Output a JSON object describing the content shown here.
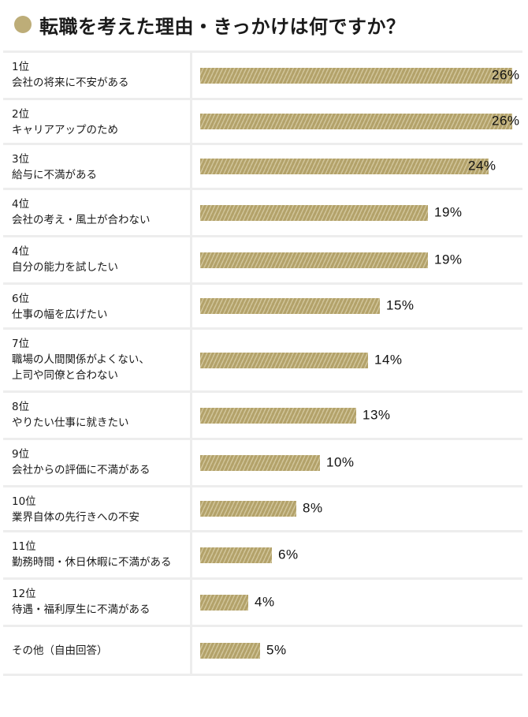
{
  "title": "転職を考えた理由・きっかけは何ですか？",
  "colors": {
    "accent": "#bdad78",
    "bar": "#b3a26a",
    "bar_stripe": "#d0c499",
    "divider": "#ededed"
  },
  "chart_data": {
    "type": "bar",
    "orientation": "horizontal",
    "xlim": [
      0,
      26
    ],
    "categories": [
      {
        "rank": "1位",
        "reason": "会社の将来に不安がある",
        "value": 26,
        "label": "26%"
      },
      {
        "rank": "2位",
        "reason": "キャリアアップのため",
        "value": 26,
        "label": "26%"
      },
      {
        "rank": "3位",
        "reason": "給与に不満がある",
        "value": 24,
        "label": "24%"
      },
      {
        "rank": "4位",
        "reason": "会社の考え・風土が合わない",
        "value": 19,
        "label": "19%"
      },
      {
        "rank": "4位",
        "reason": "自分の能力を試したい",
        "value": 19,
        "label": "19%"
      },
      {
        "rank": "6位",
        "reason": "仕事の幅を広げたい",
        "value": 15,
        "label": "15%"
      },
      {
        "rank": "7位",
        "reason": "職場の人間関係がよくない、\n上司や同僚と合わない",
        "value": 14,
        "label": "14%"
      },
      {
        "rank": "8位",
        "reason": "やりたい仕事に就きたい",
        "value": 13,
        "label": "13%"
      },
      {
        "rank": "9位",
        "reason": "会社からの評価に不満がある",
        "value": 10,
        "label": "10%"
      },
      {
        "rank": "10位",
        "reason": "業界自体の先行きへの不安",
        "value": 8,
        "label": "8%"
      },
      {
        "rank": "11位",
        "reason": "勤務時間・休日休暇に不満がある",
        "value": 6,
        "label": "6%"
      },
      {
        "rank": "12位",
        "reason": "待遇・福利厚生に不満がある",
        "value": 4,
        "label": "4%"
      },
      {
        "rank": "",
        "reason": "その他（自由回答）",
        "value": 5,
        "label": "5%"
      }
    ]
  }
}
